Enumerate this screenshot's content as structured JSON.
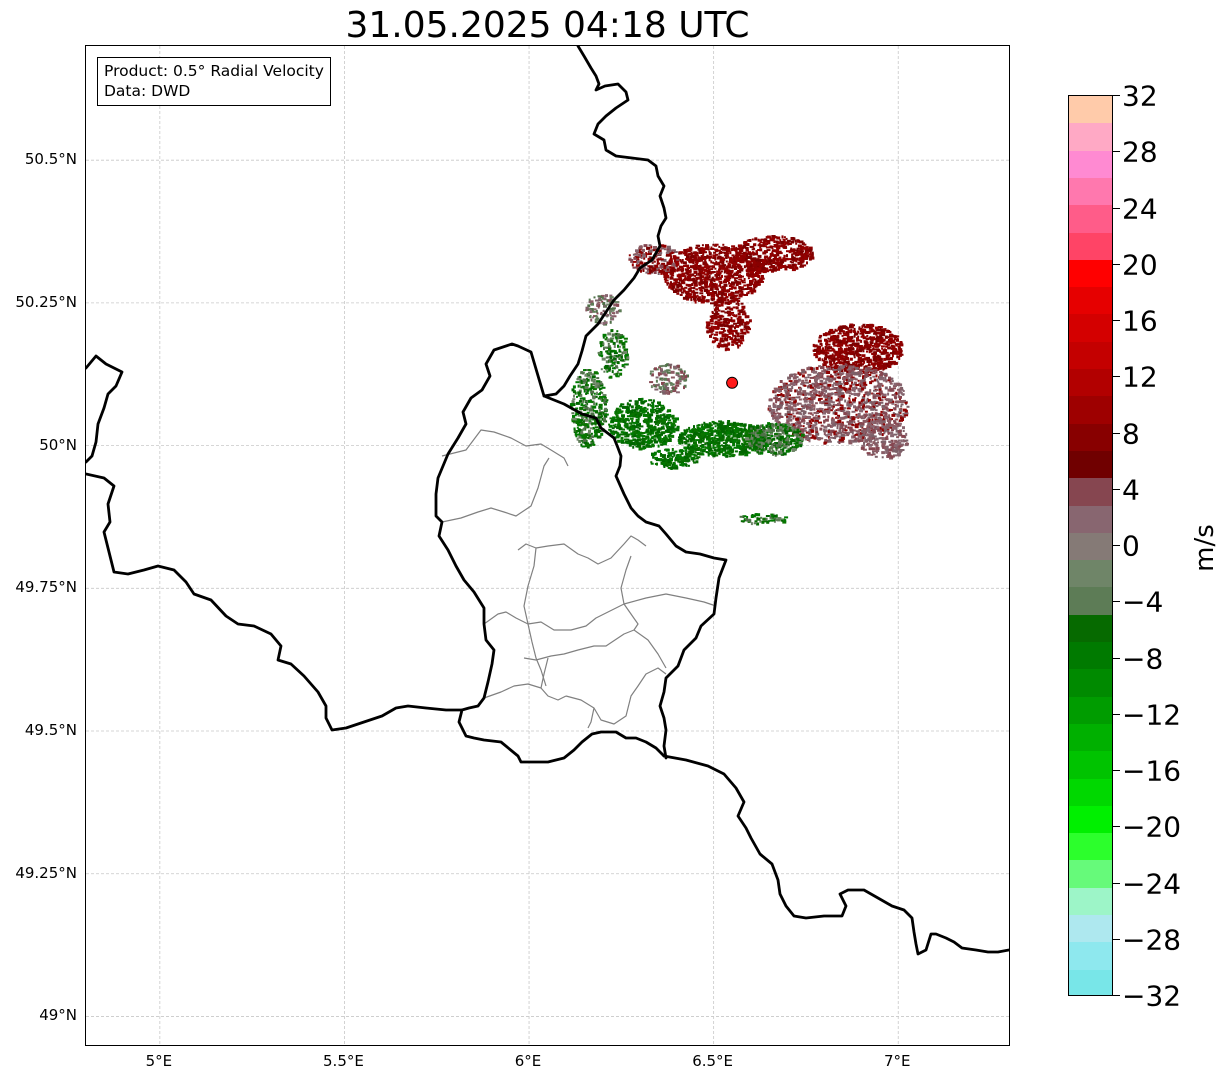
{
  "title": "31.05.2025 04:18 UTC",
  "info_box": {
    "product": "Product: 0.5° Radial Velocity",
    "source": "Data: DWD"
  },
  "map": {
    "lon_range": [
      4.8,
      7.3
    ],
    "lat_range": [
      48.95,
      50.7
    ],
    "lat_ticks": [
      {
        "value": 50.5,
        "label": "50.5°N"
      },
      {
        "value": 50.25,
        "label": "50.25°N"
      },
      {
        "value": 50.0,
        "label": "50°N"
      },
      {
        "value": 49.75,
        "label": "49.75°N"
      },
      {
        "value": 49.5,
        "label": "49.5°N"
      },
      {
        "value": 49.25,
        "label": "49.25°N"
      },
      {
        "value": 49.0,
        "label": "49°N"
      }
    ],
    "lon_ticks": [
      {
        "value": 5.0,
        "label": "5°E"
      },
      {
        "value": 5.5,
        "label": "5.5°E"
      },
      {
        "value": 6.0,
        "label": "6°E"
      },
      {
        "value": 6.5,
        "label": "6.5°E"
      },
      {
        "value": 7.0,
        "label": "7°E"
      }
    ],
    "radar_site": {
      "lon": 6.55,
      "lat": 50.11,
      "color": "#ff1a1a"
    },
    "grid": true,
    "colors": {
      "border": "#000000",
      "district": "#808080",
      "grid": "#c8c8c8"
    }
  },
  "colorbar": {
    "unit": "m/s",
    "min": -32,
    "max": 32,
    "tick_values": [
      32,
      28,
      24,
      20,
      16,
      12,
      8,
      4,
      0,
      -4,
      -8,
      -12,
      -16,
      -20,
      -24,
      -28,
      -32
    ],
    "tick_labels": [
      "32",
      "28",
      "24",
      "20",
      "16",
      "12",
      "8",
      "4",
      "0",
      "−4",
      "−8",
      "−12",
      "−16",
      "−20",
      "−24",
      "−28",
      "−32"
    ],
    "colors_top_to_bottom": [
      "#ffcbaa",
      "#ffa9c5",
      "#ff8ad2",
      "#ff78ae",
      "#ff5c89",
      "#ff4466",
      "#ff0000",
      "#e60000",
      "#d40000",
      "#c40000",
      "#b20000",
      "#9e0000",
      "#880000",
      "#700000",
      "#864650",
      "#886670",
      "#857a76",
      "#6f8568",
      "#5d7c56",
      "#066a00",
      "#007a00",
      "#008a00",
      "#009c00",
      "#00b000",
      "#00c300",
      "#00d800",
      "#00f000",
      "#2cff2c",
      "#66fa7a",
      "#9df5c8",
      "#aee8ef",
      "#8ee8ee",
      "#78e6e8"
    ]
  }
}
